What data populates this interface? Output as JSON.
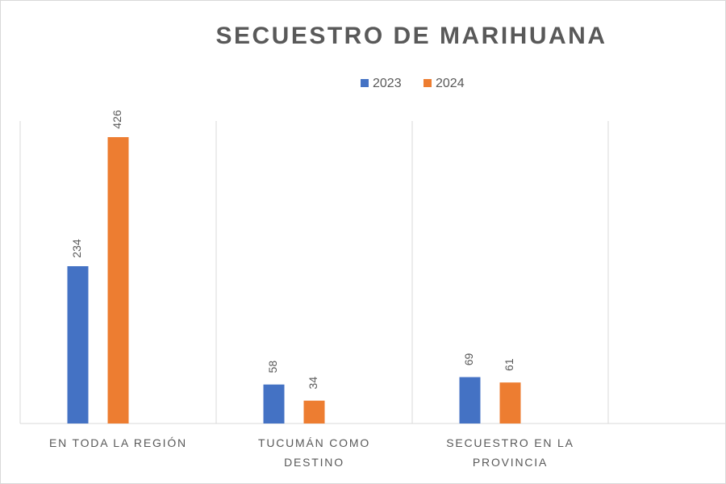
{
  "chart_data": {
    "type": "bar",
    "title": "SECUESTRO DE MARIHUANA",
    "categories": [
      "EN TODA LA REGIÓN",
      "TUCUMÁN COMO DESTINO",
      "SECUESTRO EN LA PROVINCIA",
      null
    ],
    "series": [
      {
        "name": "2023",
        "color": "#4472c4",
        "values": [
          234,
          58,
          69,
          null
        ]
      },
      {
        "name": "2024",
        "color": "#ed7d31",
        "values": [
          426,
          34,
          61,
          null
        ]
      }
    ],
    "ylim": [
      0,
      450
    ],
    "legend": "top"
  }
}
